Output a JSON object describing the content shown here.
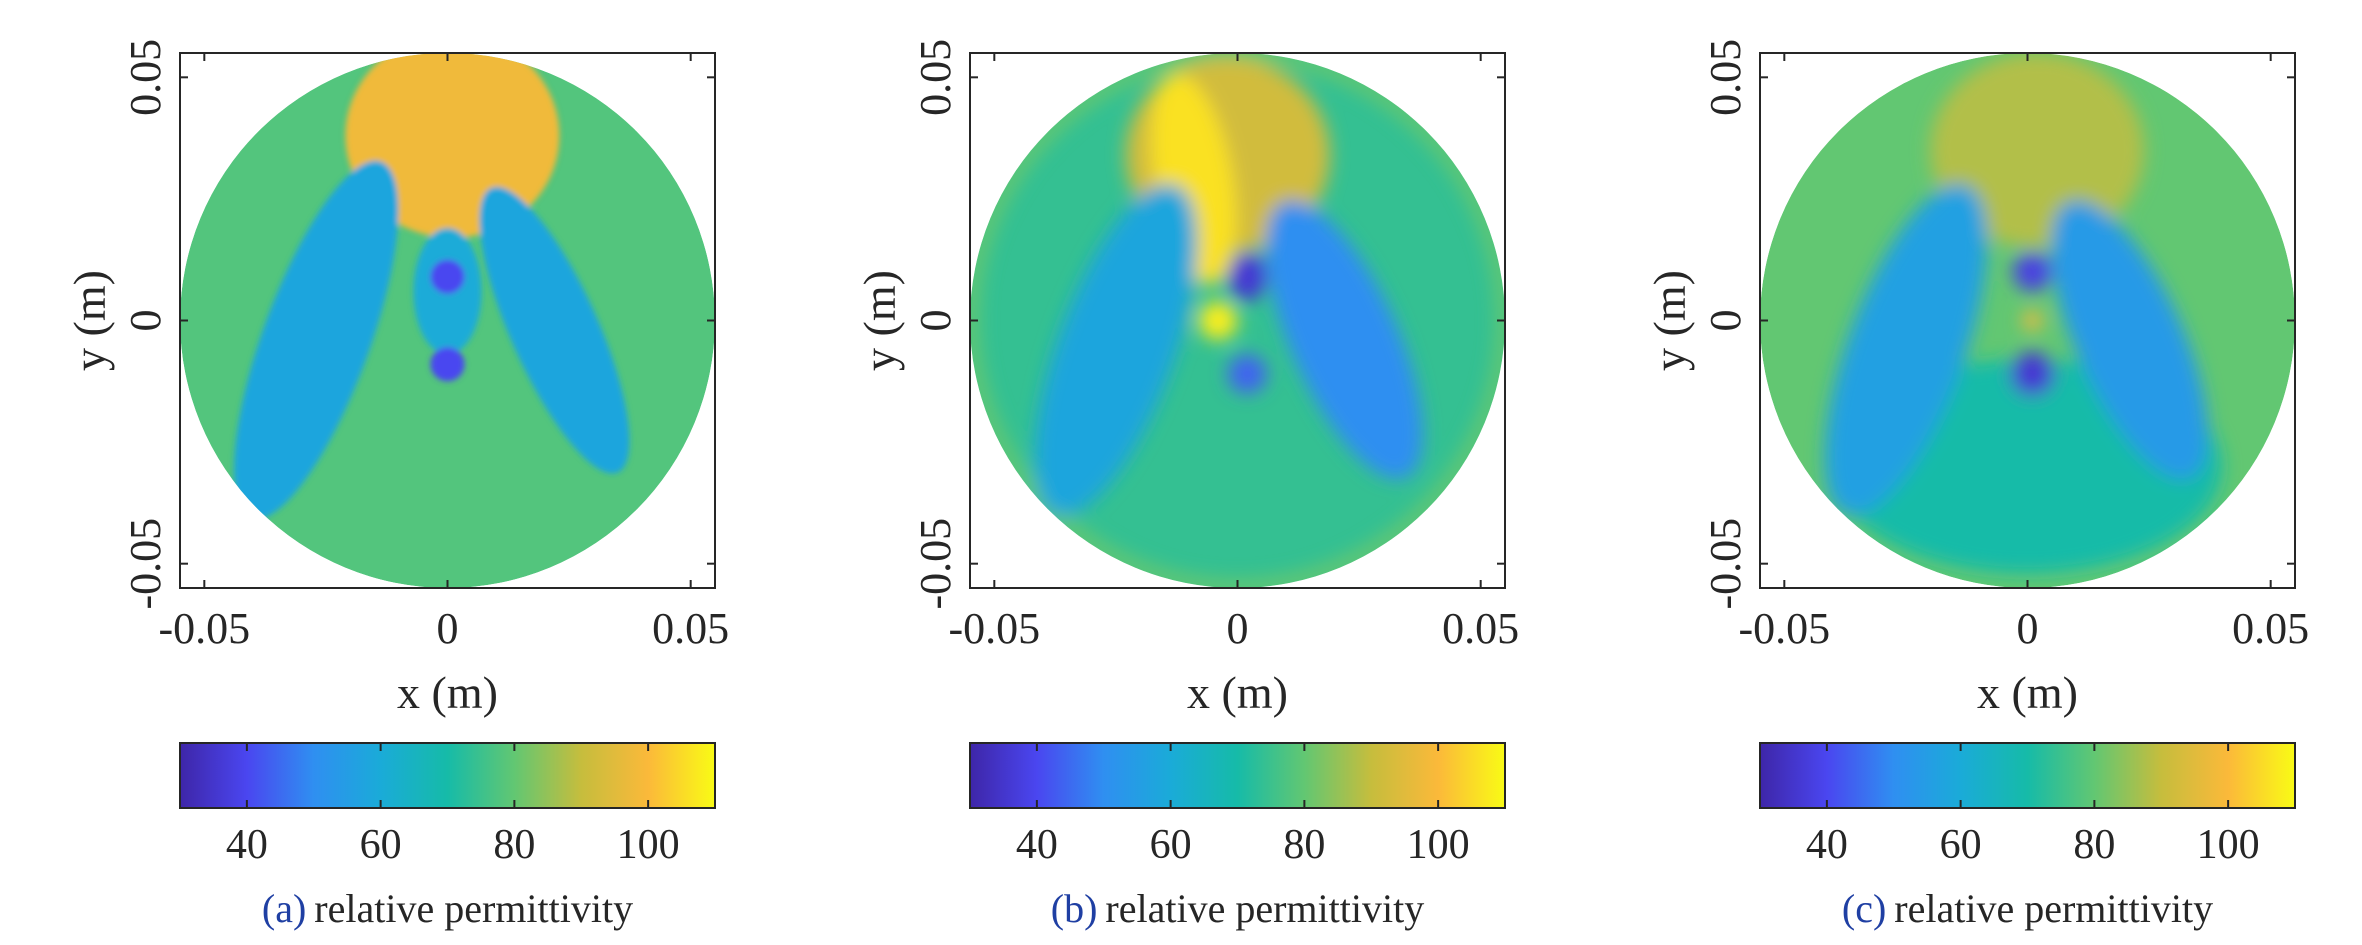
{
  "colors": {
    "axis": "#262626",
    "caption_label": "#1f3fa3",
    "colormap": [
      "#3e26a8",
      "#4a46f0",
      "#2f8ff1",
      "#1aabd8",
      "#16bba8",
      "#62c772",
      "#c6bd3d",
      "#fbb93a",
      "#f9fb15"
    ]
  },
  "chart_data": [
    {
      "type": "heatmap",
      "panel": "a",
      "caption_label": "(a)",
      "caption_text": "relative permittivity",
      "xlabel": "x (m)",
      "ylabel": "y (m)",
      "xlim": [
        -0.055,
        0.055
      ],
      "ylim": [
        -0.055,
        0.055
      ],
      "domain_radius": 0.055,
      "xticks": [
        -0.05,
        0,
        0.05
      ],
      "xtick_labels": [
        "-0.05",
        "0",
        "0.05"
      ],
      "yticks": [
        -0.05,
        0,
        0.05
      ],
      "ytick_labels": [
        "-0.05",
        "0",
        "0.05"
      ],
      "background_value": 78,
      "features": [
        {
          "name": "upper disc",
          "value": 98,
          "x": 0.001,
          "y": 0.038,
          "rx": 0.022,
          "ry": 0.021
        },
        {
          "name": "left lobe",
          "value": 58,
          "x": -0.027,
          "y": -0.004,
          "rx": 0.011,
          "ry": 0.039,
          "rotate": 20
        },
        {
          "name": "right lobe",
          "value": 58,
          "x": 0.022,
          "y": -0.002,
          "rx": 0.009,
          "ry": 0.032,
          "rotate": -24
        },
        {
          "name": "center stem",
          "value": 60,
          "x": 0.0,
          "y": 0.006,
          "rx": 0.007,
          "ry": 0.013
        },
        {
          "name": "upper dark spot",
          "value": 40,
          "x": 0.0,
          "y": 0.009,
          "rx": 0.0035,
          "ry": 0.0035
        },
        {
          "name": "lower dark spot",
          "value": 40,
          "x": 0.0,
          "y": -0.009,
          "rx": 0.0035,
          "ry": 0.0035
        }
      ],
      "colorbar": {
        "range": [
          30,
          110
        ],
        "ticks": [
          40,
          60,
          80,
          100
        ],
        "tick_labels": [
          "40",
          "60",
          "80",
          "100"
        ]
      }
    },
    {
      "type": "heatmap",
      "panel": "b",
      "caption_label": "(b)",
      "caption_text": "relative permittivity",
      "xlabel": "x (m)",
      "ylabel": "y (m)",
      "xlim": [
        -0.055,
        0.055
      ],
      "ylim": [
        -0.055,
        0.055
      ],
      "domain_radius": 0.055,
      "xticks": [
        -0.05,
        0,
        0.05
      ],
      "xtick_labels": [
        "-0.05",
        "0",
        "0.05"
      ],
      "yticks": [
        -0.05,
        0,
        0.05
      ],
      "ytick_labels": [
        "-0.05",
        "0",
        "0.05"
      ],
      "background_value": 74,
      "features": [
        {
          "name": "outer ring",
          "value": 80,
          "x": 0.0,
          "y": 0.0,
          "rx": 0.055,
          "ry": 0.055,
          "ring": true
        },
        {
          "name": "upper disc",
          "value": 92,
          "x": -0.002,
          "y": 0.034,
          "rx": 0.021,
          "ry": 0.02
        },
        {
          "name": "bright wedge",
          "value": 106,
          "x": -0.009,
          "y": 0.029,
          "rx": 0.008,
          "ry": 0.022,
          "rotate": -10
        },
        {
          "name": "left lobe",
          "value": 58,
          "x": -0.025,
          "y": -0.006,
          "rx": 0.012,
          "ry": 0.036,
          "rotate": 20
        },
        {
          "name": "right lobe",
          "value": 50,
          "x": 0.022,
          "y": -0.004,
          "rx": 0.011,
          "ry": 0.031,
          "rotate": -24
        },
        {
          "name": "upper dark spot",
          "value": 36,
          "x": 0.002,
          "y": 0.009,
          "rx": 0.004,
          "ry": 0.005
        },
        {
          "name": "lower dark spot",
          "value": 44,
          "x": 0.002,
          "y": -0.011,
          "rx": 0.004,
          "ry": 0.004
        },
        {
          "name": "hot spot",
          "value": 108,
          "x": -0.004,
          "y": 0.0,
          "rx": 0.004,
          "ry": 0.004
        }
      ],
      "colorbar": {
        "range": [
          30,
          110
        ],
        "ticks": [
          40,
          60,
          80,
          100
        ],
        "tick_labels": [
          "40",
          "60",
          "80",
          "100"
        ]
      }
    },
    {
      "type": "heatmap",
      "panel": "c",
      "caption_label": "(c)",
      "caption_text": "relative permittivity",
      "xlabel": "x (m)",
      "ylabel": "y (m)",
      "xlim": [
        -0.055,
        0.055
      ],
      "ylim": [
        -0.055,
        0.055
      ],
      "domain_radius": 0.055,
      "xticks": [
        -0.05,
        0,
        0.05
      ],
      "xtick_labels": [
        "-0.05",
        "0",
        "0.05"
      ],
      "yticks": [
        -0.05,
        0,
        0.05
      ],
      "ytick_labels": [
        "-0.05",
        "0",
        "0.05"
      ],
      "background_value": 80,
      "features": [
        {
          "name": "bottom fade",
          "value": 70,
          "x": 0.0,
          "y": -0.03,
          "rx": 0.04,
          "ry": 0.022
        },
        {
          "name": "upper disc",
          "value": 88,
          "x": 0.002,
          "y": 0.035,
          "rx": 0.022,
          "ry": 0.02
        },
        {
          "name": "left lobe",
          "value": 56,
          "x": -0.025,
          "y": -0.006,
          "rx": 0.012,
          "ry": 0.036,
          "rotate": 20
        },
        {
          "name": "right lobe",
          "value": 54,
          "x": 0.021,
          "y": -0.004,
          "rx": 0.011,
          "ry": 0.031,
          "rotate": -24
        },
        {
          "name": "upper dark spot",
          "value": 38,
          "x": 0.001,
          "y": 0.01,
          "rx": 0.004,
          "ry": 0.004
        },
        {
          "name": "lower dark spot",
          "value": 36,
          "x": 0.001,
          "y": -0.011,
          "rx": 0.0045,
          "ry": 0.0045
        },
        {
          "name": "hot spot",
          "value": 100,
          "x": 0.001,
          "y": 0.0,
          "rx": 0.002,
          "ry": 0.002
        }
      ],
      "colorbar": {
        "range": [
          30,
          110
        ],
        "ticks": [
          40,
          60,
          80,
          100
        ],
        "tick_labels": [
          "40",
          "60",
          "80",
          "100"
        ]
      }
    }
  ]
}
